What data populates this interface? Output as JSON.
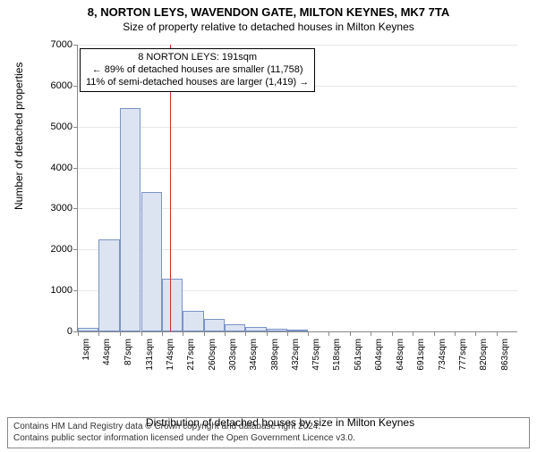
{
  "title_main": "8, NORTON LEYS, WAVENDON GATE, MILTON KEYNES, MK7 7TA",
  "title_sub": "Size of property relative to detached houses in Milton Keynes",
  "chart": {
    "type": "histogram",
    "background_color": "#ffffff",
    "grid_color": "#e8e8e8",
    "axis_color": "#888888",
    "bar_fill": "#dce4f2",
    "bar_stroke": "#7a93c7",
    "refline_color": "#d62a2a",
    "ylabel": "Number of detached properties",
    "xlabel": "Distribution of detached houses by size in Milton Keynes",
    "ylim": [
      0,
      7000
    ],
    "ytick_step": 1000,
    "x_tick_labels": [
      "1sqm",
      "44sqm",
      "87sqm",
      "131sqm",
      "174sqm",
      "217sqm",
      "260sqm",
      "303sqm",
      "346sqm",
      "389sqm",
      "432sqm",
      "475sqm",
      "518sqm",
      "561sqm",
      "604sqm",
      "648sqm",
      "691sqm",
      "734sqm",
      "777sqm",
      "820sqm",
      "863sqm"
    ],
    "x_tick_fontsize": 10,
    "ylabel_fontsize": 12,
    "xlabel_fontsize": 12,
    "bars": [
      {
        "x": 1,
        "count": 80
      },
      {
        "x": 44,
        "count": 2250
      },
      {
        "x": 87,
        "count": 5450
      },
      {
        "x": 131,
        "count": 3400
      },
      {
        "x": 174,
        "count": 1280
      },
      {
        "x": 217,
        "count": 500
      },
      {
        "x": 260,
        "count": 300
      },
      {
        "x": 303,
        "count": 180
      },
      {
        "x": 346,
        "count": 100
      },
      {
        "x": 389,
        "count": 60
      },
      {
        "x": 432,
        "count": 30
      }
    ],
    "bar_width_sqm": 43,
    "xlim": [
      1,
      906
    ],
    "reference_value": 191,
    "annotation": {
      "line1": "8 NORTON LEYS: 191sqm",
      "line2": "← 89% of detached houses are smaller (11,758)",
      "line3": "11% of semi-detached houses are larger (1,419) →",
      "border_color": "#000000",
      "background": "#ffffff",
      "fontsize": 11
    }
  },
  "footer": {
    "line1": "Contains HM Land Registry data © Crown copyright and database right 2024.",
    "line2": "Contains public sector information licensed under the Open Government Licence v3.0.",
    "border_color": "#888888",
    "fontsize": 10
  }
}
